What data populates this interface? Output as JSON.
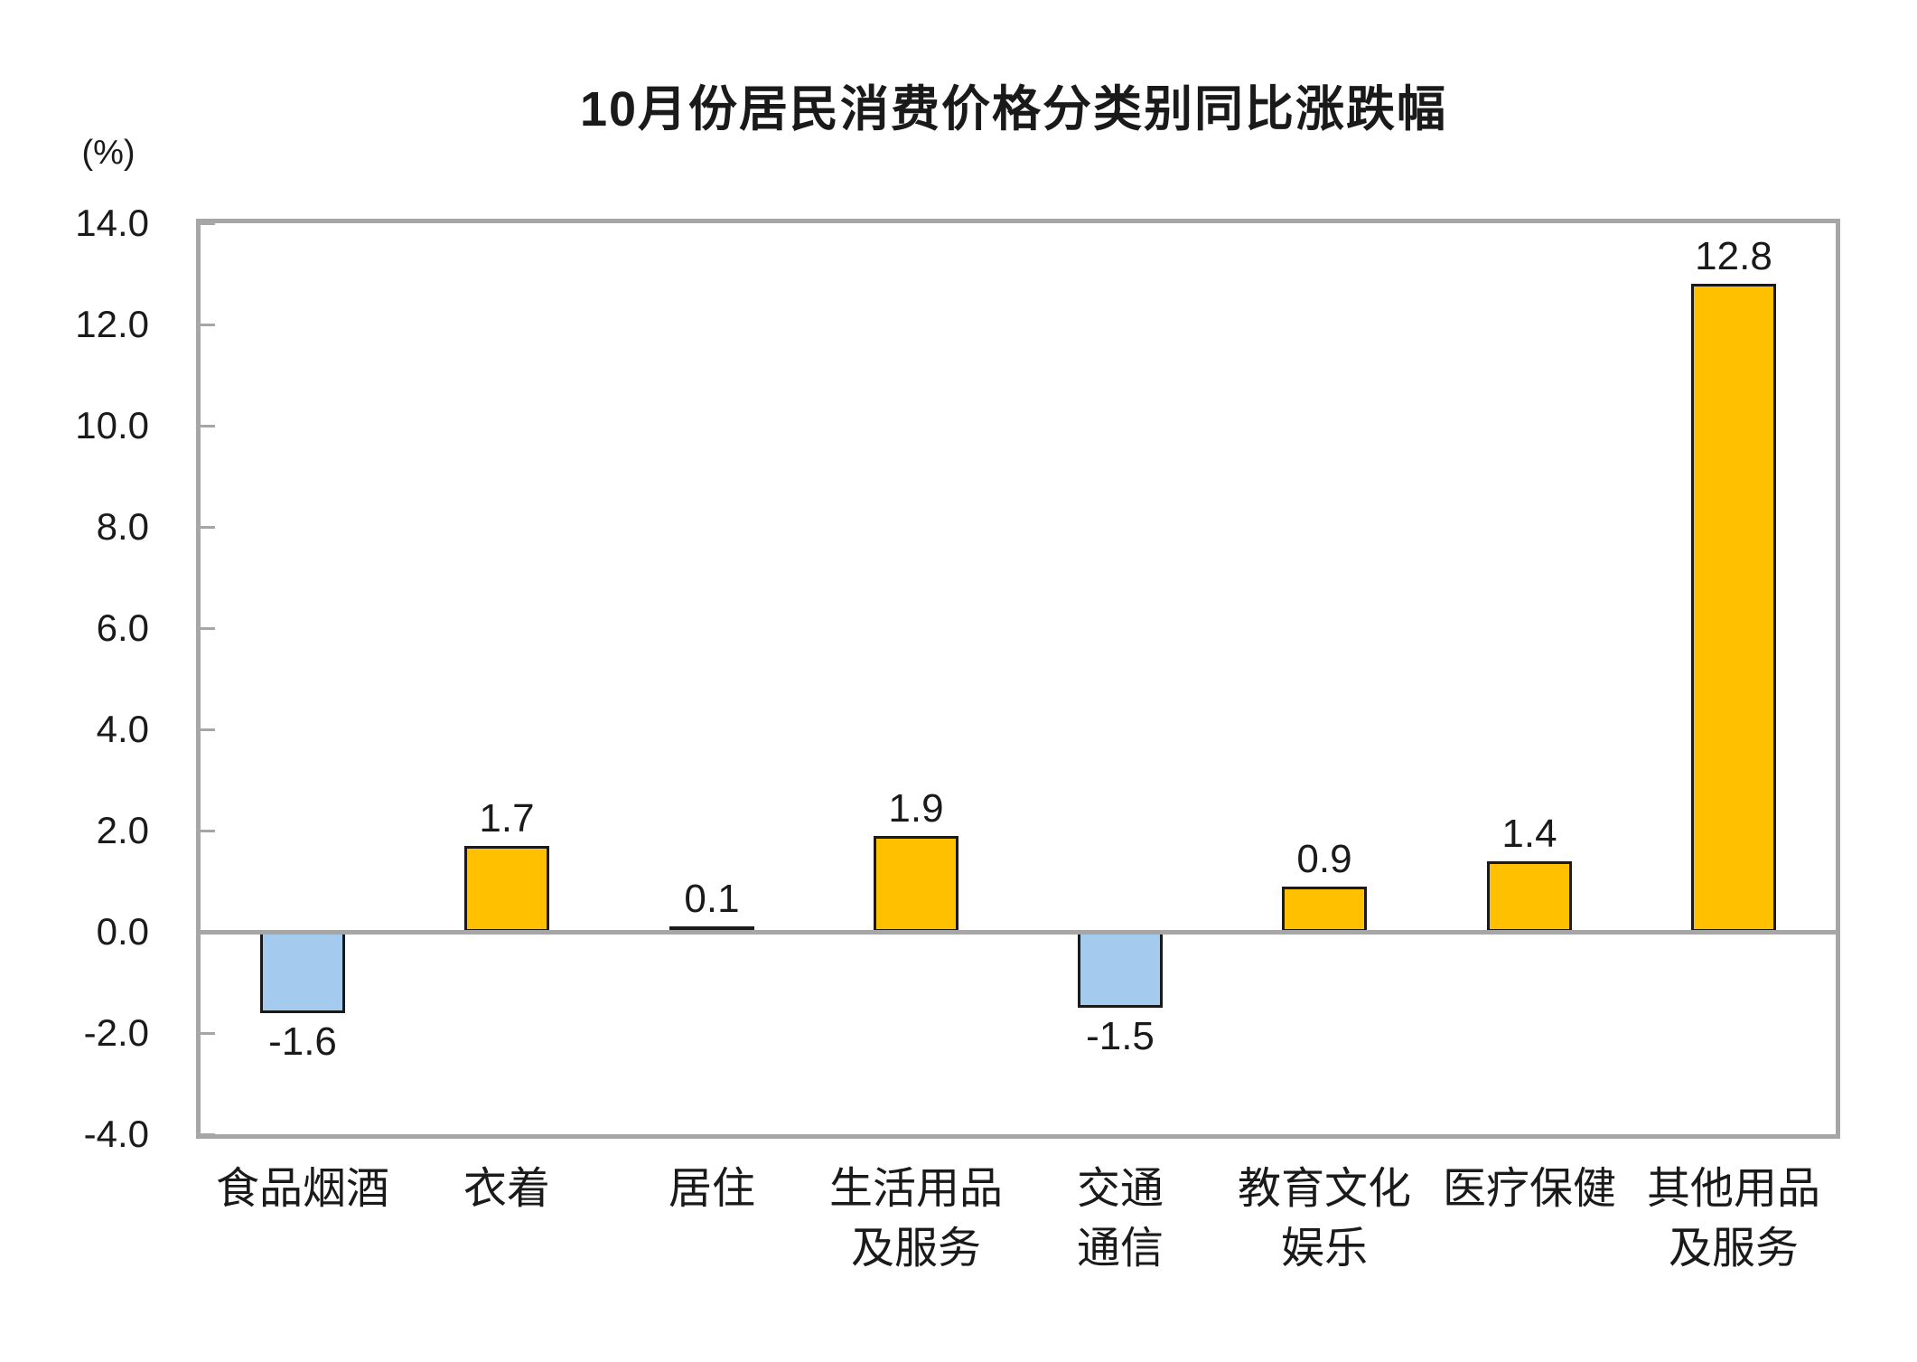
{
  "chart_data": {
    "type": "bar",
    "title": "10月份居民消费价格分类别同比涨跌幅",
    "unit_label": "(%)",
    "categories": [
      "食品烟酒",
      "衣着",
      "居住",
      "生活用品\n及服务",
      "交通\n通信",
      "教育文化\n娱乐",
      "医疗保健",
      "其他用品\n及服务"
    ],
    "values": [
      -1.6,
      1.7,
      0.1,
      1.9,
      -1.5,
      0.9,
      1.4,
      12.8
    ],
    "data_labels": [
      "-1.6",
      "1.7",
      "0.1",
      "1.9",
      "-1.5",
      "0.9",
      "1.4",
      "12.8"
    ],
    "xlabel": "",
    "ylabel": "(%)",
    "ylim": [
      -4.0,
      14.0
    ],
    "y_ticks": [
      14.0,
      12.0,
      10.0,
      8.0,
      6.0,
      4.0,
      2.0,
      0.0,
      -2.0,
      -4.0
    ],
    "y_tick_labels": [
      "14.0",
      "12.0",
      "10.0",
      "8.0",
      "6.0",
      "4.0",
      "2.0",
      "0.0",
      "-2.0",
      "-4.0"
    ],
    "grid": false,
    "legend": "none",
    "colors": {
      "positive_bar": "#FFC000",
      "negative_bar": "#A4CBEE",
      "bar_border": "#1A1A1A",
      "axis_gray": "#A6A6A6",
      "text": "#1A1A1A",
      "background": "#FFFFFF"
    }
  }
}
